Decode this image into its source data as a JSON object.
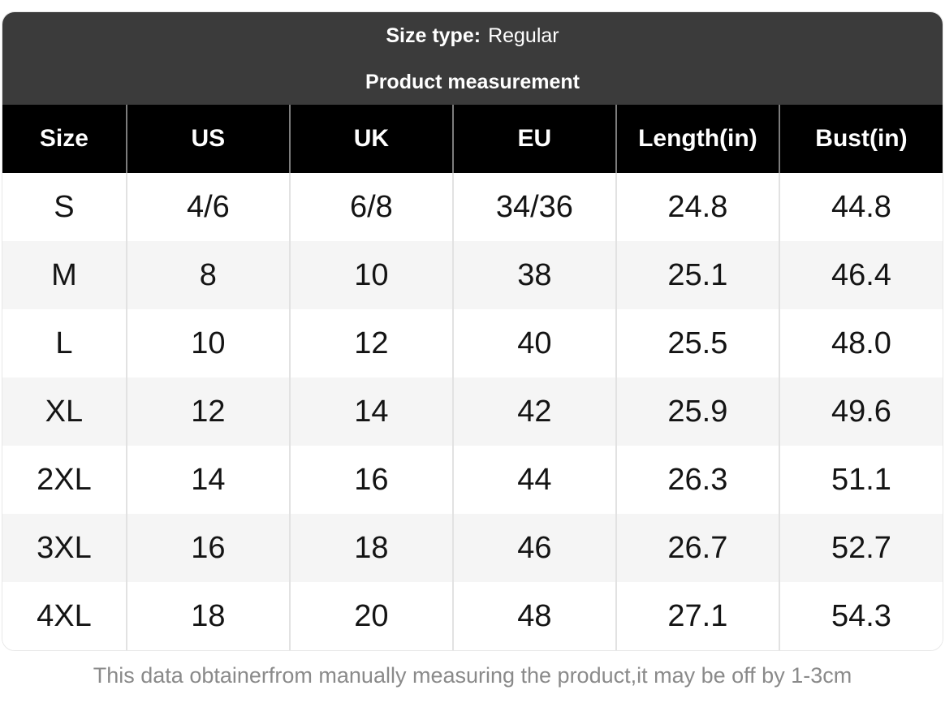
{
  "title_bar": {
    "size_type_label": "Size type:",
    "size_type_value": "Regular",
    "subtitle": "Product measurement"
  },
  "chart_data": {
    "type": "table",
    "title": "Product measurement",
    "size_type": "Regular",
    "columns": [
      "Size",
      "US",
      "UK",
      "EU",
      "Length(in)",
      "Bust(in)"
    ],
    "rows": [
      [
        "S",
        "4/6",
        "6/8",
        "34/36",
        "24.8",
        "44.8"
      ],
      [
        "M",
        "8",
        "10",
        "38",
        "25.1",
        "46.4"
      ],
      [
        "L",
        "10",
        "12",
        "40",
        "25.5",
        "48.0"
      ],
      [
        "XL",
        "12",
        "14",
        "42",
        "25.9",
        "49.6"
      ],
      [
        "2XL",
        "14",
        "16",
        "44",
        "26.3",
        "51.1"
      ],
      [
        "3XL",
        "16",
        "18",
        "46",
        "26.7",
        "52.7"
      ],
      [
        "4XL",
        "18",
        "20",
        "48",
        "27.1",
        "54.3"
      ]
    ],
    "layout": {
      "header_row_bg": "#000000",
      "title_bar_bg": "#3b3b3b",
      "alt_row_bg": "#f5f5f5",
      "grid": "vertical-dividers-only"
    }
  },
  "footer": {
    "note": "This data obtainerfrom manually measuring the product,it may be off by 1-3cm"
  },
  "colors": {
    "title_bar_bg": "#3b3b3b",
    "header_row_bg": "#000000",
    "header_text": "#ffffff",
    "body_text": "#141414",
    "alt_row_bg": "#f5f5f5",
    "divider_on_black": "#7c7c7c",
    "divider_on_white": "#e2e2e2",
    "footer_text": "#8a8a8a"
  }
}
